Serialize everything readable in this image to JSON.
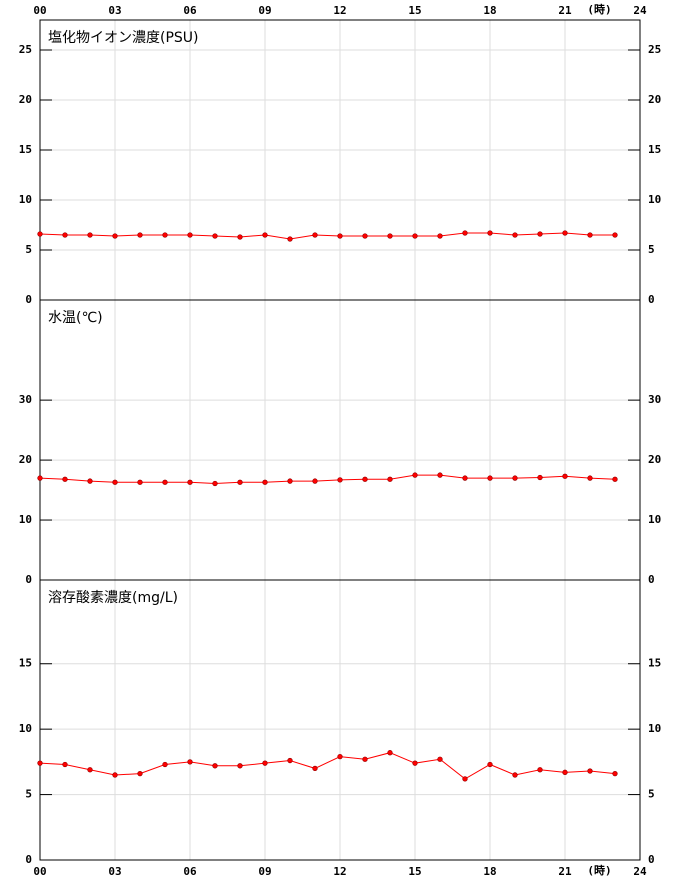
{
  "chart_data": [
    {
      "type": "line",
      "title": "塩化物イオン濃度(PSU)",
      "x": [
        0,
        1,
        2,
        3,
        4,
        5,
        6,
        7,
        8,
        9,
        10,
        11,
        12,
        13,
        14,
        15,
        16,
        17,
        18,
        19,
        20,
        21,
        22,
        23
      ],
      "xlim": [
        0,
        24
      ],
      "xticks": [
        {
          "value": 0,
          "label": "00"
        },
        {
          "value": 3,
          "label": "03"
        },
        {
          "value": 6,
          "label": "06"
        },
        {
          "value": 9,
          "label": "09"
        },
        12,
        15,
        18,
        21,
        24
      ],
      "x_unit_label": "(時)",
      "ylim": [
        0,
        28
      ],
      "yticks": [
        0,
        5,
        10,
        15,
        20,
        25
      ],
      "grid": true,
      "series": [
        {
          "color": "#ff0000",
          "values": [
            6.6,
            6.5,
            6.5,
            6.4,
            6.5,
            6.5,
            6.5,
            6.4,
            6.3,
            6.5,
            6.1,
            6.5,
            6.4,
            6.4,
            6.4,
            6.4,
            6.4,
            6.7,
            6.7,
            6.5,
            6.6,
            6.7,
            6.5,
            6.5
          ]
        }
      ]
    },
    {
      "type": "line",
      "title": "水温(℃)",
      "x": [
        0,
        1,
        2,
        3,
        4,
        5,
        6,
        7,
        8,
        9,
        10,
        11,
        12,
        13,
        14,
        15,
        16,
        17,
        18,
        19,
        20,
        21,
        22,
        23
      ],
      "xlim": [
        0,
        24
      ],
      "ylim": [
        0,
        46.7
      ],
      "yticks": [
        0,
        10,
        20,
        30
      ],
      "grid": true,
      "series": [
        {
          "color": "#ff0000",
          "values": [
            17.0,
            16.8,
            16.5,
            16.3,
            16.3,
            16.3,
            16.3,
            16.1,
            16.3,
            16.3,
            16.5,
            16.5,
            16.7,
            16.8,
            16.8,
            17.5,
            17.5,
            17.0,
            17.0,
            17.0,
            17.1,
            17.3,
            17.0,
            16.8
          ]
        }
      ]
    },
    {
      "type": "line",
      "title": "溶存酸素濃度(mg/L)",
      "x": [
        0,
        1,
        2,
        3,
        4,
        5,
        6,
        7,
        8,
        9,
        10,
        11,
        12,
        13,
        14,
        15,
        16,
        17,
        18,
        19,
        20,
        21,
        22,
        23
      ],
      "xlim": [
        0,
        24
      ],
      "xticks": [
        {
          "value": 0,
          "label": "00"
        },
        {
          "value": 3,
          "label": "03"
        },
        {
          "value": 6,
          "label": "06"
        },
        {
          "value": 9,
          "label": "09"
        },
        12,
        15,
        18,
        21,
        24
      ],
      "x_unit_label": "(時)",
      "ylim": [
        0,
        21.4
      ],
      "yticks": [
        0,
        5,
        10,
        15
      ],
      "grid": true,
      "series": [
        {
          "color": "#ff0000",
          "values": [
            7.4,
            7.3,
            6.9,
            6.5,
            6.6,
            7.3,
            7.5,
            7.2,
            7.2,
            7.4,
            7.6,
            7.0,
            7.9,
            7.7,
            8.2,
            7.4,
            7.7,
            6.2,
            7.3,
            6.5,
            6.9,
            6.7,
            6.8,
            6.6
          ]
        }
      ]
    }
  ]
}
